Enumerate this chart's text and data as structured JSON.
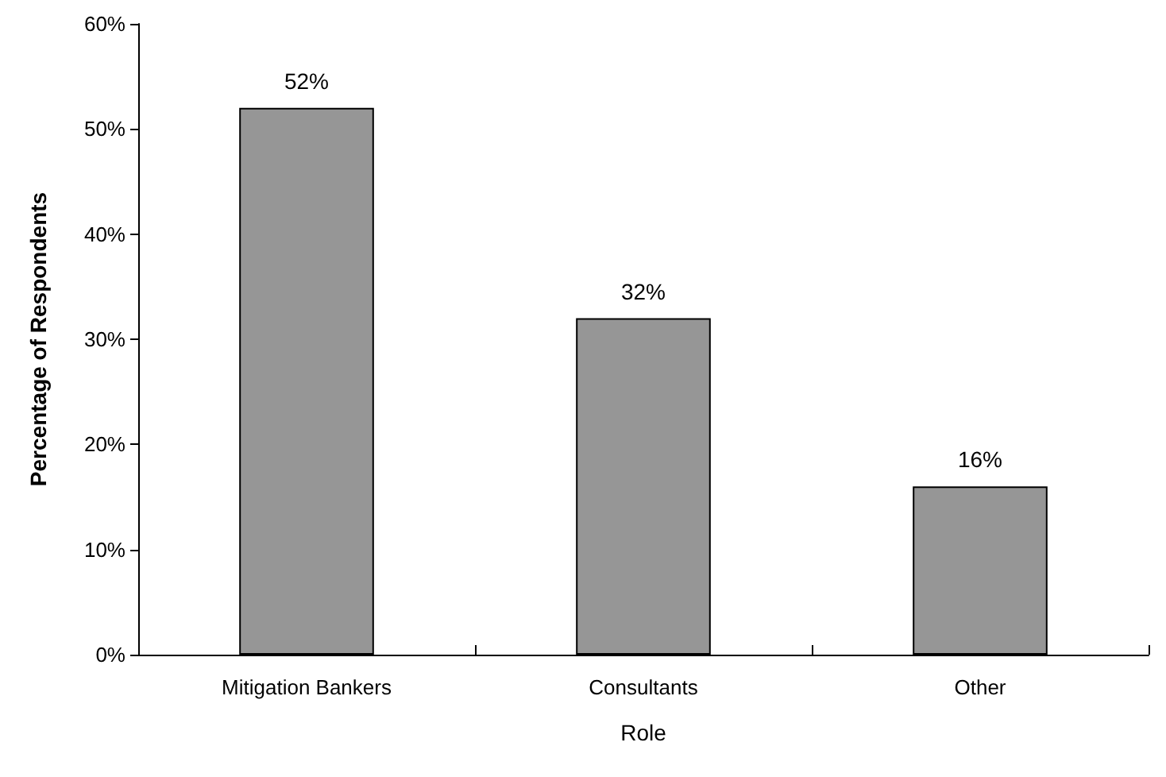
{
  "chart_data": {
    "type": "bar",
    "xlabel": "Role",
    "ylabel": "Percentage of Respondents",
    "categories": [
      "Mitigation Bankers",
      "Consultants",
      "Other"
    ],
    "values": [
      52,
      32,
      16
    ],
    "color": "#969696",
    "value_labels": [
      "52%",
      "32%",
      "16%"
    ],
    "ylim": [
      0,
      60
    ],
    "yticks": [
      {
        "value": 0,
        "label": "0%"
      },
      {
        "value": 10,
        "label": "10%"
      },
      {
        "value": 20,
        "label": "20%"
      },
      {
        "value": 30,
        "label": "30%"
      },
      {
        "value": 40,
        "label": "40%"
      },
      {
        "value": 50,
        "label": "50%"
      },
      {
        "value": 60,
        "label": "60%"
      }
    ],
    "grid": false
  }
}
